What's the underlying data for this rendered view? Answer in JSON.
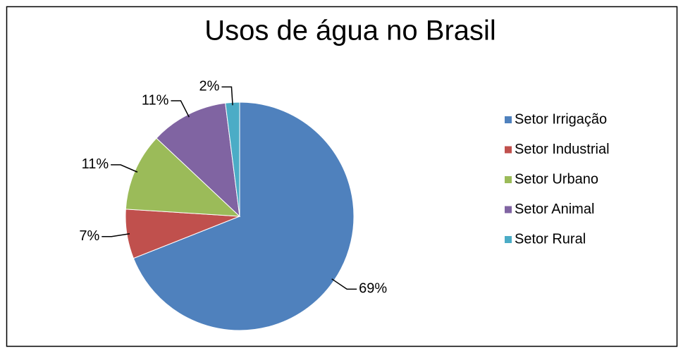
{
  "chart_data": {
    "type": "pie",
    "title": "Usos de água no Brasil",
    "categories": [
      "Setor Irrigação",
      "Setor Industrial",
      "Setor Urbano",
      "Setor Animal",
      "Setor Rural"
    ],
    "values": [
      69,
      7,
      11,
      11,
      2
    ],
    "value_labels": [
      "69%",
      "7%",
      "11%",
      "11%",
      "2%"
    ],
    "colors": [
      "#4f81bd",
      "#c0504d",
      "#9bbb59",
      "#8064a2",
      "#4bacc6"
    ],
    "legend": "right"
  }
}
